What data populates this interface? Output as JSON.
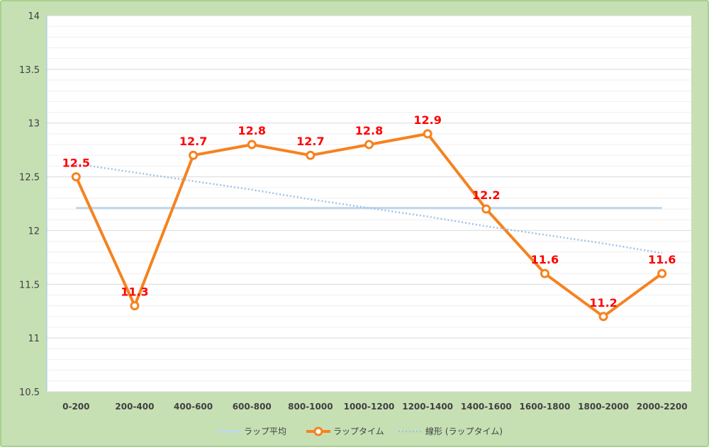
{
  "chart_data": {
    "type": "line",
    "title": "",
    "xlabel": "",
    "ylabel": "",
    "categories": [
      "0-200",
      "200-400",
      "400-600",
      "600-800",
      "800-1000",
      "1000-1200",
      "1200-1400",
      "1400-1600",
      "1600-1800",
      "1800-2000",
      "2000-2200"
    ],
    "ylim": [
      10.5,
      14
    ],
    "yticks": [
      "10.5",
      "11",
      "11.5",
      "12",
      "12.5",
      "13",
      "13.5",
      "14"
    ],
    "grid": true,
    "legend_position": "bottom",
    "series": [
      {
        "name": "ラップ平均",
        "style": "solid",
        "color": "#bdd7ee",
        "values": [
          12.21,
          12.21,
          12.21,
          12.21,
          12.21,
          12.21,
          12.21,
          12.21,
          12.21,
          12.21,
          12.21
        ]
      },
      {
        "name": "ラップタイム",
        "style": "line-markers",
        "color": "#f5821f",
        "values": [
          12.5,
          11.3,
          12.7,
          12.8,
          12.7,
          12.8,
          12.9,
          12.2,
          11.6,
          11.2,
          11.6
        ],
        "data_labels": [
          "12.5",
          "11.3",
          "12.7",
          "12.8",
          "12.7",
          "12.8",
          "12.9",
          "12.2",
          "11.6",
          "11.2",
          "11.6"
        ]
      },
      {
        "name": "線形 (ラップタイム)",
        "style": "dotted",
        "color": "#9dc3e6",
        "values": [
          12.62,
          12.54,
          12.46,
          12.38,
          12.29,
          12.21,
          12.13,
          12.04,
          11.96,
          11.88,
          11.79
        ]
      }
    ],
    "label_color": "#ff0000",
    "background_color": "#ffffff",
    "frame_color": "#c6e0b4"
  }
}
